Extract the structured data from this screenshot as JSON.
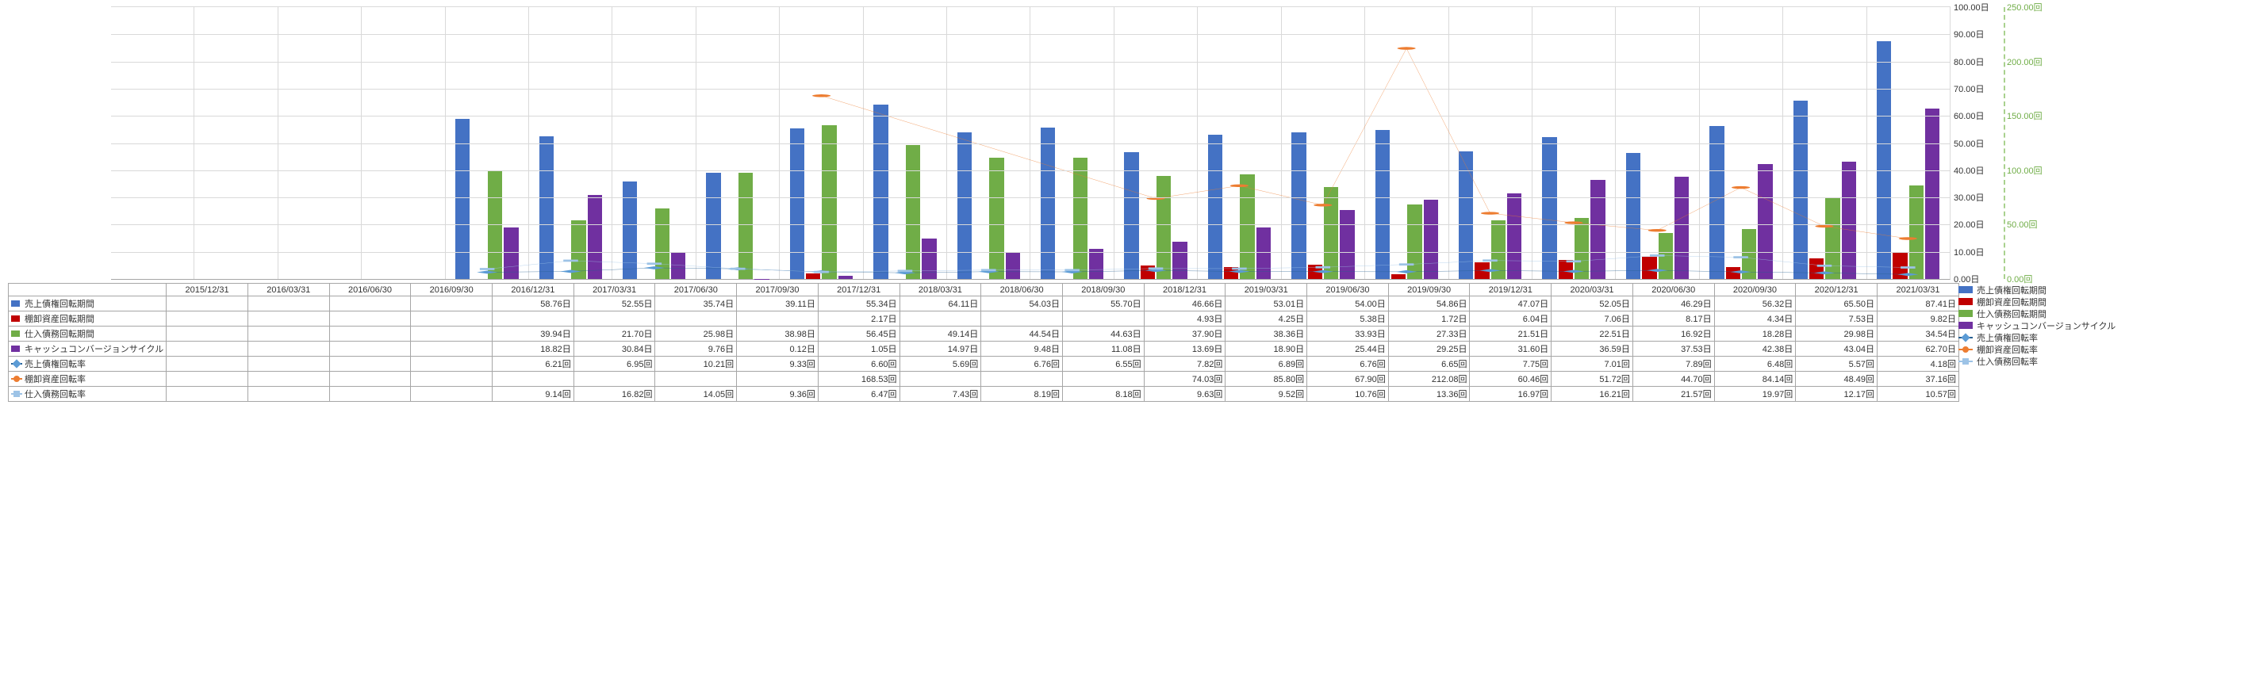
{
  "chart": {
    "type": "combo-bar-line",
    "periods": [
      "2015/12/31",
      "2016/03/31",
      "2016/06/30",
      "2016/09/30",
      "2016/12/31",
      "2017/03/31",
      "2017/06/30",
      "2017/09/30",
      "2017/12/31",
      "2018/03/31",
      "2018/06/30",
      "2018/09/30",
      "2018/12/31",
      "2019/03/31",
      "2019/06/30",
      "2019/09/30",
      "2019/12/31",
      "2020/03/31",
      "2020/06/30",
      "2020/09/30",
      "2020/12/31",
      "2021/03/31"
    ],
    "left_axis": {
      "min": 0,
      "max": 100,
      "step": 10,
      "unit": "日",
      "color": "#333333",
      "grid_color": "#d9d9d9"
    },
    "right_axis": {
      "min": 0,
      "max": 100,
      "step": 10,
      "unit": "日",
      "color": "#333333"
    },
    "right_axis2": {
      "min": 0,
      "max": 250,
      "step": 50,
      "unit": "回",
      "color": "#70ad47",
      "dash": "4,3"
    },
    "background_color": "#ffffff",
    "tick_fontsize": 11,
    "cat_fontsize": 11,
    "bar_group_gap": 0.24,
    "series": [
      {
        "key": "uri_kaiten_kikan",
        "name": "売上債権回転期間",
        "type": "bar",
        "axis": "left",
        "color": "#4472c4",
        "unit": "日",
        "data": [
          null,
          null,
          null,
          null,
          58.76,
          52.55,
          35.74,
          39.11,
          55.34,
          64.11,
          54.03,
          55.7,
          46.66,
          53.01,
          54.0,
          54.86,
          47.07,
          52.05,
          46.29,
          56.32,
          65.5,
          87.41
        ]
      },
      {
        "key": "tana_kaiten_kikan",
        "name": "棚卸資産回転期間",
        "type": "bar",
        "axis": "left",
        "color": "#c00000",
        "unit": "日",
        "data": [
          null,
          null,
          null,
          null,
          null,
          null,
          null,
          null,
          2.17,
          null,
          null,
          null,
          4.93,
          4.25,
          5.38,
          1.72,
          6.04,
          7.06,
          8.17,
          4.34,
          7.53,
          9.82
        ]
      },
      {
        "key": "shi_kaiten_kikan",
        "name": "仕入債務回転期間",
        "type": "bar",
        "axis": "left",
        "color": "#70ad47",
        "unit": "日",
        "data": [
          null,
          null,
          null,
          null,
          39.94,
          21.7,
          25.98,
          38.98,
          56.45,
          49.14,
          44.54,
          44.63,
          37.9,
          38.36,
          33.93,
          27.33,
          21.51,
          22.51,
          16.92,
          18.28,
          29.98,
          34.54
        ]
      },
      {
        "key": "ccc",
        "name": "キャッシュコンバージョンサイクル",
        "type": "bar",
        "axis": "left",
        "color": "#7030a0",
        "unit": "日",
        "data": [
          null,
          null,
          null,
          null,
          18.82,
          30.84,
          9.76,
          0.12,
          1.05,
          14.97,
          9.48,
          11.08,
          13.69,
          18.9,
          25.44,
          29.25,
          31.6,
          36.59,
          37.53,
          42.38,
          43.04,
          62.7
        ]
      },
      {
        "key": "uri_kaiten_ritsu",
        "name": "売上債権回転率",
        "type": "line",
        "axis": "right2",
        "color": "#255e91",
        "marker": "diamond",
        "marker_fill": "#5b9bd5",
        "unit": "回",
        "data": [
          null,
          null,
          null,
          null,
          6.21,
          6.95,
          10.21,
          9.33,
          6.6,
          5.69,
          6.76,
          6.55,
          7.82,
          6.89,
          6.76,
          6.65,
          7.75,
          7.01,
          7.89,
          6.48,
          5.57,
          4.18
        ]
      },
      {
        "key": "tana_kaiten_ritsu",
        "name": "棚卸資産回転率",
        "type": "line",
        "axis": "right2",
        "color": "#ed7d31",
        "marker": "circle",
        "marker_fill": "#ed7d31",
        "unit": "回",
        "data": [
          null,
          null,
          null,
          null,
          null,
          null,
          null,
          null,
          168.53,
          null,
          null,
          null,
          74.03,
          85.8,
          67.9,
          212.08,
          60.46,
          51.72,
          44.7,
          84.14,
          48.49,
          37.16
        ]
      },
      {
        "key": "shi_kaiten_ritsu",
        "name": "仕入債務回転率",
        "type": "line",
        "axis": "right2",
        "color": "#9dc3e6",
        "marker": "square",
        "marker_fill": "#9dc3e6",
        "unit": "回",
        "data": [
          null,
          null,
          null,
          null,
          9.14,
          16.82,
          14.05,
          9.36,
          6.47,
          7.43,
          8.19,
          8.18,
          9.63,
          9.52,
          10.76,
          13.36,
          16.97,
          16.21,
          21.57,
          19.97,
          12.17,
          10.57
        ]
      }
    ]
  }
}
